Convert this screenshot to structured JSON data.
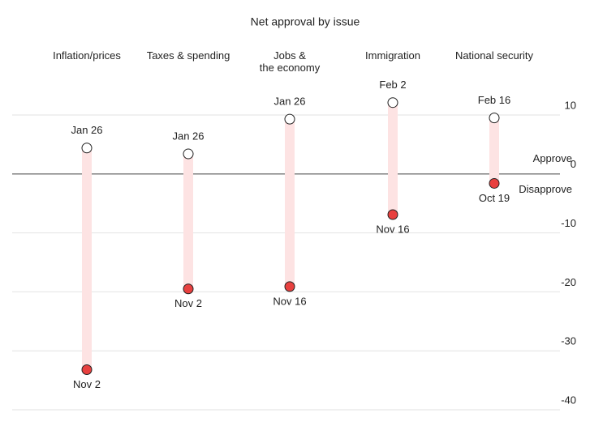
{
  "chart_data": {
    "type": "dumbbell",
    "title": "Net approval by issue",
    "categories": [
      "Inflation/prices",
      "Taxes & spending",
      "Jobs &\nthe economy",
      "Immigration",
      "National security"
    ],
    "series": [
      {
        "color": "#ffffff",
        "values": [
          4.4,
          3.4,
          9.3,
          12.1,
          9.5
        ],
        "point_labels": [
          "Jan 26",
          "Jan 26",
          "Jan 26",
          "Feb 2",
          "Feb 16"
        ]
      },
      {
        "color": "#e8403f",
        "values": [
          -33.2,
          -19.5,
          -19.1,
          -6.9,
          -1.6
        ],
        "point_labels": [
          "Nov 2",
          "Nov 2",
          "Nov 16",
          "Nov 16",
          "Oct 19"
        ]
      }
    ],
    "range_color": "#fde3e3",
    "annotations": [
      {
        "text": "Approve",
        "color": "#222222"
      },
      {
        "text": "Disapprove",
        "color": "#d7302f"
      }
    ],
    "ylim": [
      -40,
      10
    ],
    "yticks": [
      10,
      0,
      -10,
      -20,
      -30,
      -40
    ],
    "grid": true
  }
}
